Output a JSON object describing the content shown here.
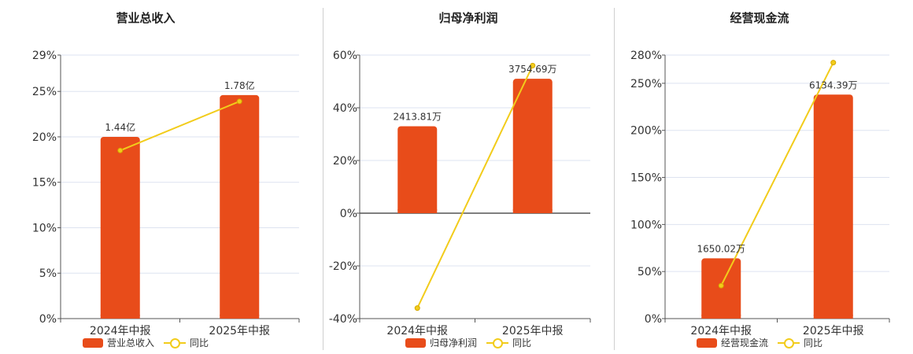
{
  "colors": {
    "bar": "#e84c1a",
    "line": "#f2cc1b",
    "grid": "#dde3f0",
    "axis": "#555555"
  },
  "chart_data": [
    {
      "type": "bar",
      "title": "营业总收入",
      "categories": [
        "2024年中报",
        "2025年中报"
      ],
      "y_ticks": [
        "0%",
        "5%",
        "10%",
        "15%",
        "20%",
        "25%",
        "29%"
      ],
      "y_tick_values": [
        0,
        5,
        10,
        15,
        20,
        25,
        29
      ],
      "ylim": [
        0,
        29
      ],
      "series": [
        {
          "name": "营业总收入",
          "kind": "bar",
          "values": [
            20,
            24.6
          ],
          "labels": [
            "1.44亿",
            "1.78亿"
          ]
        },
        {
          "name": "同比",
          "kind": "line",
          "values": [
            18.5,
            23.9
          ]
        }
      ]
    },
    {
      "type": "bar",
      "title": "归母净利润",
      "categories": [
        "2024年中报",
        "2025年中报"
      ],
      "y_ticks": [
        "-40%",
        "-20%",
        "0%",
        "20%",
        "40%",
        "60%"
      ],
      "y_tick_values": [
        -40,
        -20,
        0,
        20,
        40,
        60
      ],
      "ylim": [
        -40,
        60
      ],
      "series": [
        {
          "name": "归母净利润",
          "kind": "bar",
          "values": [
            33,
            51
          ],
          "labels": [
            "2413.81万",
            "3754.69万"
          ]
        },
        {
          "name": "同比",
          "kind": "line",
          "values": [
            -36,
            56
          ]
        }
      ]
    },
    {
      "type": "bar",
      "title": "经营现金流",
      "categories": [
        "2024年中报",
        "2025年中报"
      ],
      "y_ticks": [
        "0%",
        "50%",
        "100%",
        "150%",
        "200%",
        "250%",
        "280%"
      ],
      "y_tick_values": [
        0,
        50,
        100,
        150,
        200,
        250,
        280
      ],
      "ylim": [
        0,
        280
      ],
      "series": [
        {
          "name": "经营现金流",
          "kind": "bar",
          "values": [
            64,
            238
          ],
          "labels": [
            "1650.02万",
            "6134.39万"
          ]
        },
        {
          "name": "同比",
          "kind": "line",
          "values": [
            35,
            272
          ]
        }
      ]
    }
  ]
}
